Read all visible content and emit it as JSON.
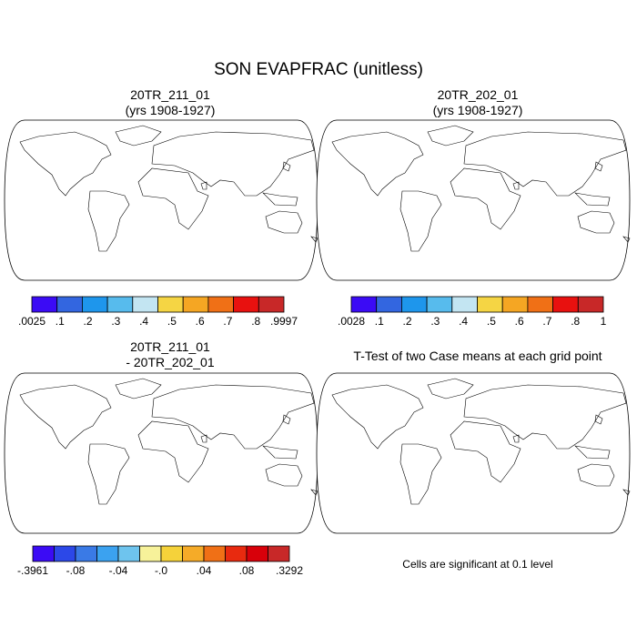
{
  "title": "SON EVAPFRAC (unitless)",
  "panels": [
    {
      "title_line1": "20TR_211_01",
      "title_line2": "(yrs 1908-1927)"
    },
    {
      "title_line1": "20TR_202_01",
      "title_line2": "(yrs 1908-1927)"
    },
    {
      "title_line1": "20TR_211_01",
      "title_line2": "- 20TR_202_01"
    },
    {
      "title_line1": "T-Test of two Case means at each grid point"
    }
  ],
  "note": "Cells are significant at 0.1 level",
  "chart_data": [
    {
      "type": "heatmap",
      "title": "20TR_211_01 (yrs 1908-1927)",
      "map": "world land field, Robinson projection",
      "colorbar": {
        "colors": [
          "#3b0bf5",
          "#3366e0",
          "#1e96ec",
          "#57bbed",
          "#c3e5f2",
          "#f5d544",
          "#f5a623",
          "#f07016",
          "#e8110f",
          "#c82828"
        ],
        "tick_labels": [
          ".0025",
          ".1",
          ".2",
          ".3",
          ".4",
          ".5",
          ".6",
          ".7",
          ".8",
          ".9997"
        ]
      }
    },
    {
      "type": "heatmap",
      "title": "20TR_202_01 (yrs 1908-1927)",
      "map": "world land field, Robinson projection",
      "colorbar": {
        "colors": [
          "#3b0bf5",
          "#3366e0",
          "#1e96ec",
          "#57bbed",
          "#c3e5f2",
          "#f5d544",
          "#f5a623",
          "#f07016",
          "#e8110f",
          "#c82828"
        ],
        "tick_labels": [
          ".0028",
          ".1",
          ".2",
          ".3",
          ".4",
          ".5",
          ".6",
          ".7",
          ".8",
          "1"
        ]
      }
    },
    {
      "type": "heatmap",
      "title": "20TR_211_01 - 20TR_202_01",
      "map": "world land field, Robinson projection",
      "colorbar": {
        "colors": [
          "#3b0bf5",
          "#2c48e8",
          "#3a7ae6",
          "#3ba2f0",
          "#6ec4ee",
          "#f7f29a",
          "#f5d23a",
          "#f5ab28",
          "#f07016",
          "#e82a0f",
          "#d8000a",
          "#c82828"
        ],
        "tick_labels": [
          "-.3961",
          "-.08",
          "-.04",
          "-.0",
          ".04",
          ".08",
          ".3292"
        ]
      }
    },
    {
      "type": "heatmap",
      "title": "T-Test of two Case means at each grid point",
      "map": "world land mask, Robinson projection",
      "significant_color": "#e60000",
      "significance_level": 0.1
    }
  ]
}
